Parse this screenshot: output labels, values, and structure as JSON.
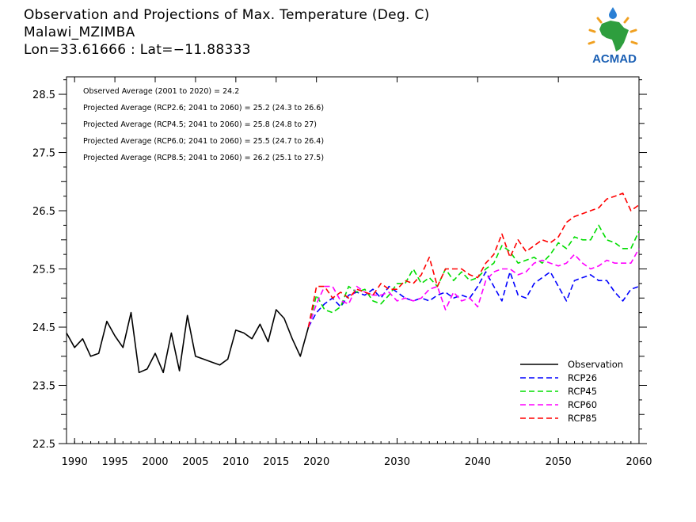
{
  "header": {
    "title": "Observation and Projections of Max. Temperature (Deg. C)",
    "station": "Malawi_MZIMBA",
    "coords": "Lon=33.61666 : Lat=−11.88333"
  },
  "logo": {
    "text": "ACMAD",
    "icon": "africa-map-logo",
    "colors": {
      "africa": "#2e9e3e",
      "sun": "#f0a020",
      "text": "#1a5fb4",
      "drop": "#2a7fd4"
    }
  },
  "annotations": [
    "Observed Average (2001 to 2020) = 24.2",
    "Projected Average (RCP2.6; 2041 to 2060) = 25.2 (24.3 to 26.6)",
    "Projected Average (RCP4.5; 2041 to 2060) = 25.8 (24.8 to 27)",
    "Projected Average (RCP6.0; 2041 to 2060) = 25.5 (24.7 to 26.4)",
    "Projected Average (RCP8.5; 2041 to 2060) = 26.2 (25.1 to 27.5)"
  ],
  "chart_data": {
    "type": "line",
    "xlim": [
      1989,
      2060
    ],
    "ylim": [
      22.5,
      28.8
    ],
    "x_ticks": [
      {
        "v": 1990,
        "label": "1990"
      },
      {
        "v": 1995,
        "label": "1995"
      },
      {
        "v": 2000,
        "label": "2000"
      },
      {
        "v": 2005,
        "label": "2005"
      },
      {
        "v": 2010,
        "label": "2010"
      },
      {
        "v": 2015,
        "label": "2015"
      },
      {
        "v": 2020,
        "label": "2020"
      },
      {
        "v": 2030,
        "label": "2030"
      },
      {
        "v": 2040,
        "label": "2040"
      },
      {
        "v": 2050,
        "label": "2050"
      },
      {
        "v": 2060,
        "label": "2060"
      }
    ],
    "y_ticks": [
      22.5,
      23.5,
      24.5,
      25.5,
      26.5,
      27.5,
      28.5
    ],
    "y_tick_labels": [
      "22.5",
      "23.5",
      "24.5",
      "25.5",
      "26.5",
      "27.5",
      "28.5"
    ],
    "legend_position": "bottom-right",
    "series": [
      {
        "name": "Observation",
        "color": "#000000",
        "dash": "solid",
        "x": [
          1989,
          1990,
          1991,
          1992,
          1993,
          1994,
          1995,
          1996,
          1997,
          1998,
          1999,
          2000,
          2001,
          2002,
          2003,
          2004,
          2005,
          2006,
          2007,
          2008,
          2009,
          2010,
          2011,
          2012,
          2013,
          2014,
          2015,
          2016,
          2017,
          2018,
          2019
        ],
        "y": [
          24.4,
          24.15,
          24.3,
          24.0,
          24.05,
          24.6,
          24.35,
          24.15,
          24.75,
          23.72,
          23.78,
          24.05,
          23.72,
          24.4,
          23.75,
          24.7,
          24.0,
          23.95,
          23.9,
          23.85,
          23.95,
          24.45,
          24.4,
          24.3,
          24.55,
          24.25,
          24.8,
          24.65,
          24.3,
          24.0,
          24.5
        ]
      },
      {
        "name": "RCP26",
        "color": "#0000ff",
        "dash": "dashed",
        "x": [
          2019,
          2020,
          2021,
          2022,
          2023,
          2024,
          2025,
          2026,
          2027,
          2028,
          2029,
          2030,
          2031,
          2032,
          2033,
          2034,
          2035,
          2036,
          2037,
          2038,
          2039,
          2040,
          2041,
          2042,
          2043,
          2044,
          2045,
          2046,
          2047,
          2048,
          2049,
          2050,
          2051,
          2052,
          2053,
          2054,
          2055,
          2056,
          2057,
          2058,
          2059,
          2060
        ],
        "y": [
          24.5,
          24.75,
          24.9,
          25.0,
          24.85,
          25.05,
          25.1,
          25.05,
          25.15,
          25.0,
          25.2,
          25.1,
          25.0,
          24.95,
          25.0,
          24.95,
          25.05,
          25.1,
          25.0,
          25.05,
          25.0,
          25.2,
          25.45,
          25.2,
          24.95,
          25.45,
          25.05,
          25.0,
          25.25,
          25.35,
          25.45,
          25.2,
          24.95,
          25.3,
          25.35,
          25.4,
          25.3,
          25.3,
          25.1,
          24.95,
          25.15,
          25.2
        ]
      },
      {
        "name": "RCP45",
        "color": "#00dd00",
        "dash": "dashed",
        "x": [
          2019,
          2020,
          2021,
          2022,
          2023,
          2024,
          2025,
          2026,
          2027,
          2028,
          2029,
          2030,
          2031,
          2032,
          2033,
          2034,
          2035,
          2036,
          2037,
          2038,
          2039,
          2040,
          2041,
          2042,
          2043,
          2044,
          2045,
          2046,
          2047,
          2048,
          2049,
          2050,
          2051,
          2052,
          2053,
          2054,
          2055,
          2056,
          2057,
          2058,
          2059,
          2060
        ],
        "y": [
          24.5,
          25.05,
          24.8,
          24.75,
          24.85,
          25.2,
          25.1,
          25.15,
          24.95,
          24.9,
          25.05,
          25.25,
          25.25,
          25.5,
          25.25,
          25.35,
          25.2,
          25.5,
          25.3,
          25.45,
          25.3,
          25.35,
          25.5,
          25.6,
          25.9,
          25.8,
          25.6,
          25.65,
          25.7,
          25.6,
          25.75,
          25.95,
          25.85,
          26.05,
          26.0,
          26.0,
          26.25,
          26.0,
          25.95,
          25.85,
          25.85,
          26.15
        ]
      },
      {
        "name": "RCP60",
        "color": "#ff00ff",
        "dash": "dashed",
        "x": [
          2019,
          2020,
          2021,
          2022,
          2023,
          2024,
          2025,
          2026,
          2027,
          2028,
          2029,
          2030,
          2031,
          2032,
          2033,
          2034,
          2035,
          2036,
          2037,
          2038,
          2039,
          2040,
          2041,
          2042,
          2043,
          2044,
          2045,
          2046,
          2047,
          2048,
          2049,
          2050,
          2051,
          2052,
          2053,
          2054,
          2055,
          2056,
          2057,
          2058,
          2059,
          2060
        ],
        "y": [
          24.5,
          24.9,
          25.2,
          25.2,
          24.95,
          24.9,
          25.2,
          25.1,
          25.05,
          25.05,
          25.1,
          24.95,
          25.0,
          24.95,
          25.0,
          25.15,
          25.2,
          24.8,
          25.1,
          24.95,
          25.0,
          24.85,
          25.3,
          25.45,
          25.5,
          25.5,
          25.4,
          25.45,
          25.6,
          25.65,
          25.6,
          25.55,
          25.6,
          25.75,
          25.6,
          25.5,
          25.55,
          25.65,
          25.6,
          25.6,
          25.6,
          25.85
        ]
      },
      {
        "name": "RCP85",
        "color": "#ff0000",
        "dash": "dashed",
        "x": [
          2019,
          2020,
          2021,
          2022,
          2023,
          2024,
          2025,
          2026,
          2027,
          2028,
          2029,
          2030,
          2031,
          2032,
          2033,
          2034,
          2035,
          2036,
          2037,
          2038,
          2039,
          2040,
          2041,
          2042,
          2043,
          2044,
          2045,
          2046,
          2047,
          2048,
          2049,
          2050,
          2051,
          2052,
          2053,
          2054,
          2055,
          2056,
          2057,
          2058,
          2059,
          2060
        ],
        "y": [
          24.5,
          25.2,
          25.2,
          25.0,
          25.1,
          25.0,
          25.15,
          25.1,
          25.05,
          25.25,
          25.15,
          25.15,
          25.3,
          25.25,
          25.4,
          25.7,
          25.2,
          25.5,
          25.5,
          25.5,
          25.4,
          25.35,
          25.6,
          25.75,
          26.1,
          25.7,
          26.0,
          25.8,
          25.9,
          26.0,
          25.95,
          26.05,
          26.3,
          26.4,
          26.45,
          26.5,
          26.55,
          26.7,
          26.75,
          26.8,
          26.5,
          26.6
        ]
      }
    ]
  }
}
